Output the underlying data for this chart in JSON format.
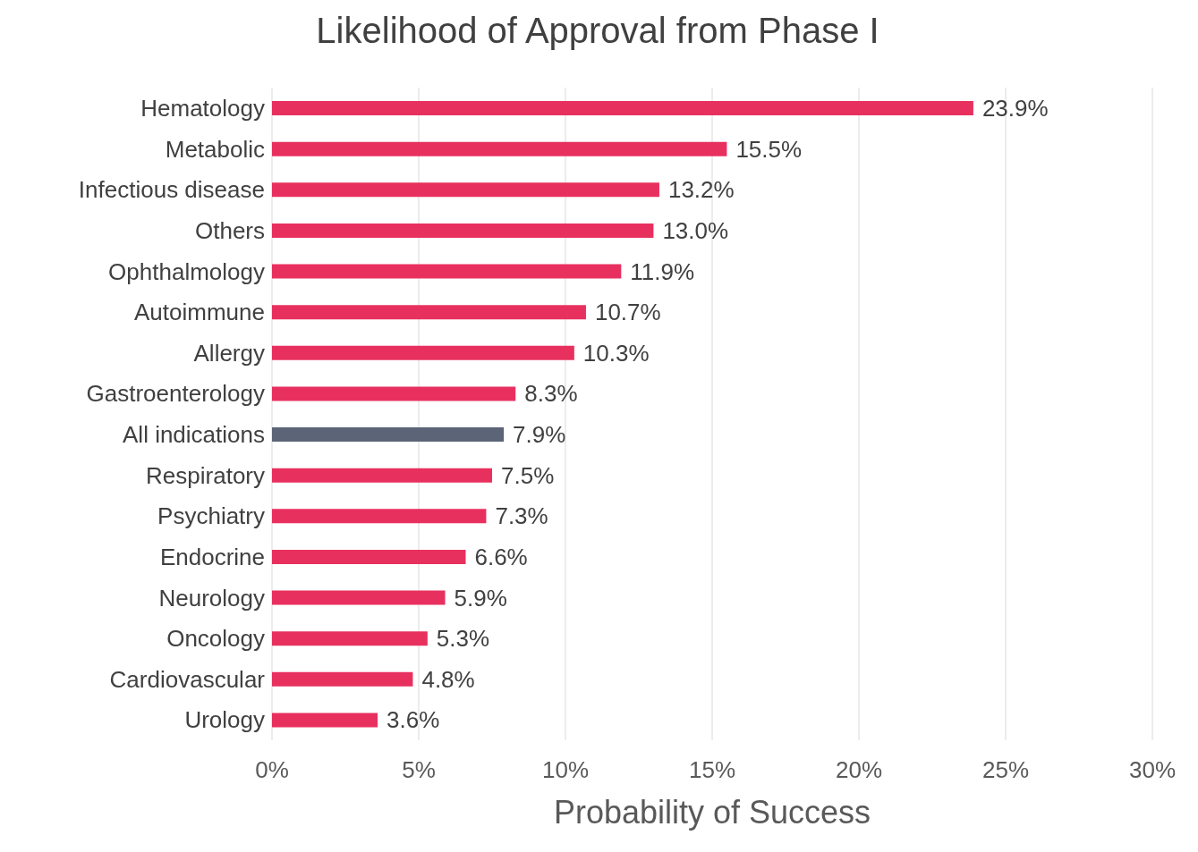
{
  "chart_data": {
    "type": "bar",
    "orientation": "horizontal",
    "title": "Likelihood of Approval from Phase I",
    "xlabel": "Probability of Success",
    "categories": [
      "Hematology",
      "Metabolic",
      "Infectious disease",
      "Others",
      "Ophthalmology",
      "Autoimmune",
      "Allergy",
      "Gastroenterology",
      "All indications",
      "Respiratory",
      "Psychiatry",
      "Endocrine",
      "Neurology",
      "Oncology",
      "Cardiovascular",
      "Urology"
    ],
    "values": [
      23.9,
      15.5,
      13.2,
      13.0,
      11.9,
      10.7,
      10.3,
      8.3,
      7.9,
      7.5,
      7.3,
      6.6,
      5.9,
      5.3,
      4.8,
      3.6
    ],
    "value_labels": [
      "23.9%",
      "15.5%",
      "13.2%",
      "13.0%",
      "11.9%",
      "10.7%",
      "10.3%",
      "8.3%",
      "7.9%",
      "7.5%",
      "7.3%",
      "6.6%",
      "5.9%",
      "5.3%",
      "4.8%",
      "3.6%"
    ],
    "colors": [
      "#e8305f",
      "#e8305f",
      "#e8305f",
      "#e8305f",
      "#e8305f",
      "#e8305f",
      "#e8305f",
      "#e8305f",
      "#5c6577",
      "#e8305f",
      "#e8305f",
      "#e8305f",
      "#e8305f",
      "#e8305f",
      "#e8305f",
      "#e8305f"
    ],
    "xlim": [
      0,
      30
    ],
    "xticks": [
      {
        "value": 0,
        "label": "0%"
      },
      {
        "value": 5,
        "label": "5%"
      },
      {
        "value": 10,
        "label": "10%"
      },
      {
        "value": 15,
        "label": "15%"
      },
      {
        "value": 20,
        "label": "20%"
      },
      {
        "value": 25,
        "label": "25%"
      },
      {
        "value": 30,
        "label": "30%"
      }
    ],
    "grid": "x"
  }
}
